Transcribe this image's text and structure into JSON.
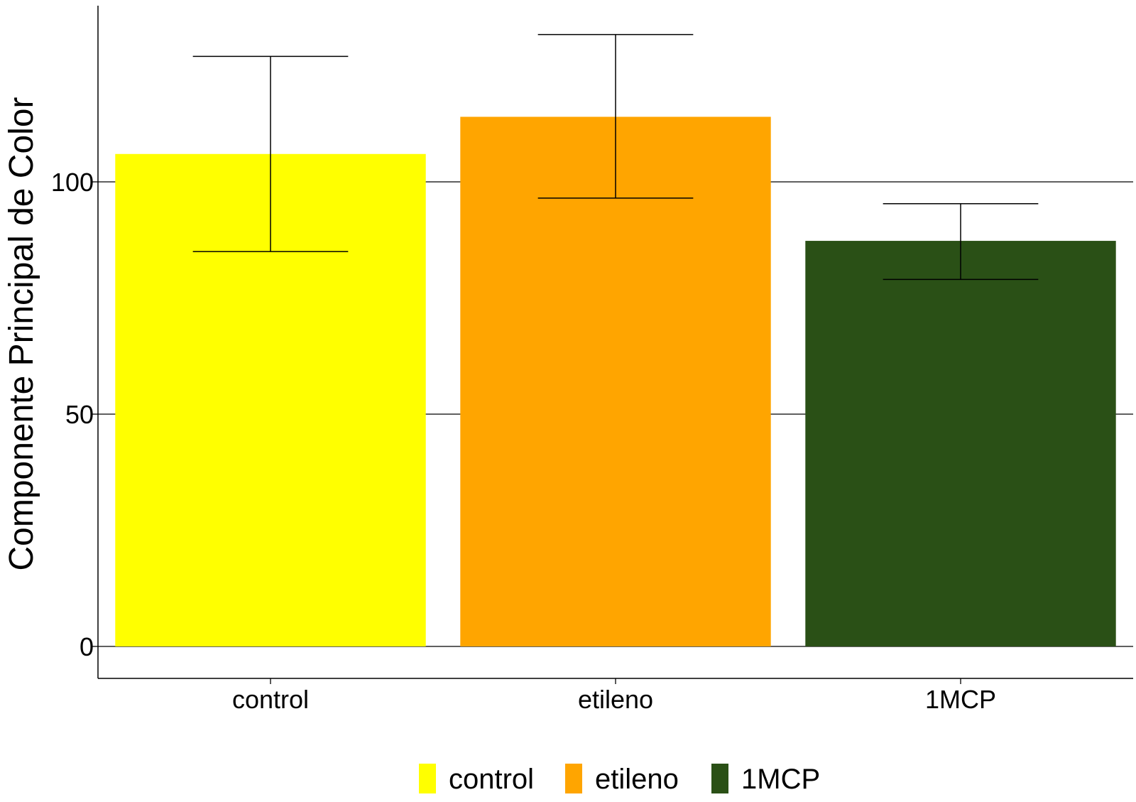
{
  "chart_data": {
    "type": "bar",
    "title": "",
    "xlabel": "",
    "ylabel": "Componente Principal de Color",
    "categories": [
      "control",
      "etileno",
      "1MCP"
    ],
    "values": [
      106,
      114,
      87.3
    ],
    "error_low": [
      85,
      96.5,
      79
    ],
    "error_high": [
      127,
      131.7,
      95.3
    ],
    "colors": [
      "#ffff00",
      "#ffa500",
      "#2a5016"
    ],
    "ylim": [
      -6.6,
      138
    ],
    "yticks": [
      0,
      50,
      100
    ],
    "gridlines": "major horizontal only",
    "legend": {
      "placement": "bottom",
      "entries": [
        "control",
        "etileno",
        "1MCP"
      ]
    }
  }
}
